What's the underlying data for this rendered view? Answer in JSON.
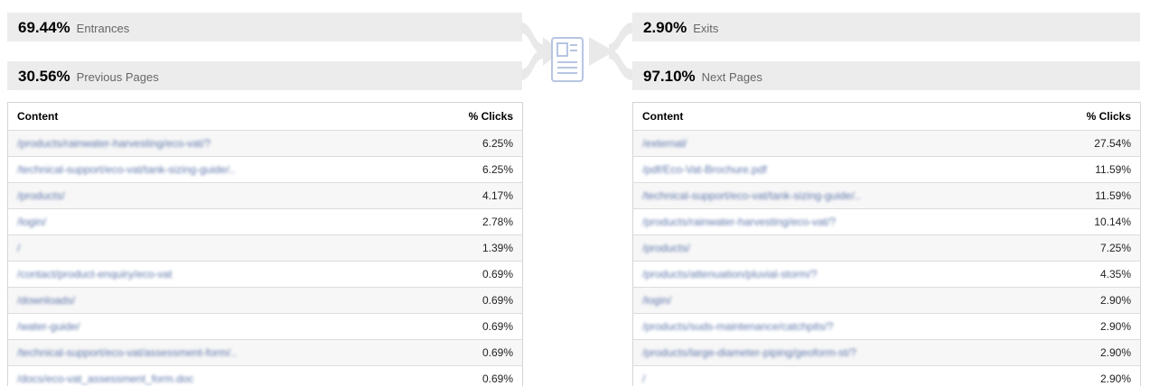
{
  "colors": {
    "bar_background": "#ececec",
    "link_blue": "#45619d",
    "row_stripe": "#f7f7f7",
    "table_border": "#d4d4d4",
    "arrow_gray": "#e9e9e9",
    "doc_icon_blue": "#b6c5e2"
  },
  "icons": {
    "left": "merge-arrow-icon",
    "center": "page-document-icon",
    "right": "split-arrow-icon"
  },
  "left_panel": {
    "summary": [
      {
        "percent": "69.44%",
        "label": "Entrances"
      },
      {
        "percent": "30.56%",
        "label": "Previous Pages"
      }
    ],
    "table": {
      "col_content": "Content",
      "col_clicks": "% Clicks",
      "rows": [
        {
          "content": "/products/rainwater-harvesting/eco-vat/?",
          "clicks": "6.25%"
        },
        {
          "content": "/technical-support/eco-vat/tank-sizing-guide/..",
          "clicks": "6.25%"
        },
        {
          "content": "/products/",
          "clicks": "4.17%"
        },
        {
          "content": "/login/",
          "clicks": "2.78%"
        },
        {
          "content": "/",
          "clicks": "1.39%"
        },
        {
          "content": "/contact/product-enquiry/eco-vat",
          "clicks": "0.69%"
        },
        {
          "content": "/downloads/",
          "clicks": "0.69%"
        },
        {
          "content": "/water-guide/",
          "clicks": "0.69%"
        },
        {
          "content": "/technical-support/eco-vat/assessment-form/..",
          "clicks": "0.69%"
        },
        {
          "content": "/docs/eco-vat_assessment_form.doc",
          "clicks": "0.69%"
        }
      ]
    }
  },
  "right_panel": {
    "summary": [
      {
        "percent": "2.90%",
        "label": "Exits"
      },
      {
        "percent": "97.10%",
        "label": "Next Pages"
      }
    ],
    "table": {
      "col_content": "Content",
      "col_clicks": "% Clicks",
      "rows": [
        {
          "content": "/external/",
          "clicks": "27.54%"
        },
        {
          "content": "/pdf/Eco-Vat-Brochure.pdf",
          "clicks": "11.59%"
        },
        {
          "content": "/technical-support/eco-vat/tank-sizing-guide/..",
          "clicks": "11.59%"
        },
        {
          "content": "/products/rainwater-harvesting/eco-vat/?",
          "clicks": "10.14%"
        },
        {
          "content": "/products/",
          "clicks": "7.25%"
        },
        {
          "content": "/products/attenuation/pluvial-storm/?",
          "clicks": "4.35%"
        },
        {
          "content": "/login/",
          "clicks": "2.90%"
        },
        {
          "content": "/products/suds-maintenance/catchpits/?",
          "clicks": "2.90%"
        },
        {
          "content": "/products/large-diameter-piping/geoform-st/?",
          "clicks": "2.90%"
        },
        {
          "content": "/",
          "clicks": "2.90%"
        }
      ]
    }
  }
}
